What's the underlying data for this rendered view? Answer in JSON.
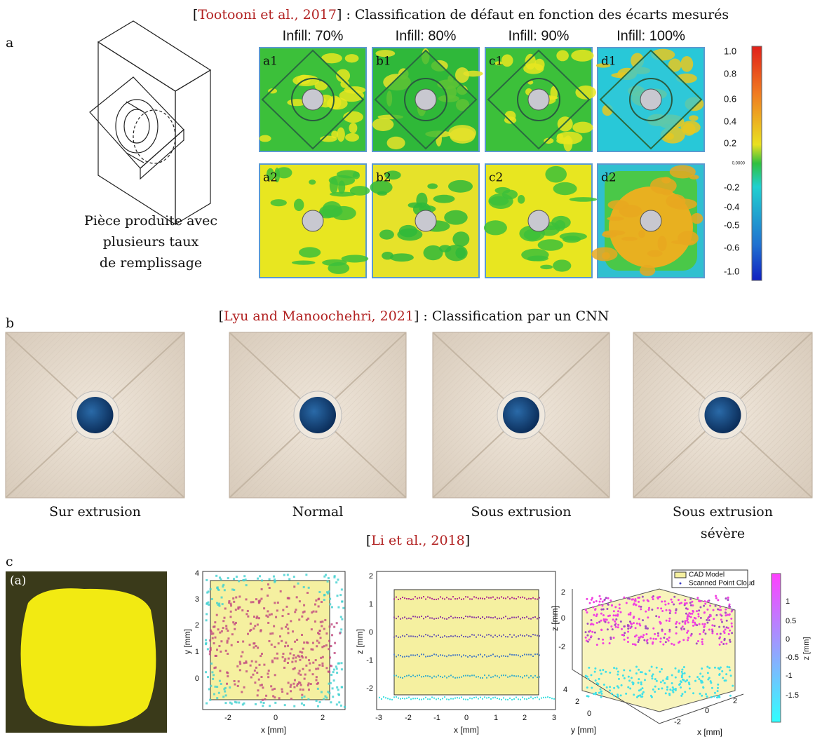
{
  "panel_a": {
    "label": "a",
    "heading": {
      "open": "[",
      "citation": "Tootooni et al., 2017",
      "close": "]",
      "rest": " : Classification de défaut en fonction des écarts mesurés"
    },
    "caption": [
      "Pièce produite avec",
      "plusieurs taux",
      "de remplissage"
    ],
    "columns": [
      "Infill: 70%",
      "Infill: 80%",
      "Infill: 90%",
      "Infill: 100%"
    ],
    "maps": [
      [
        "a1",
        "b1",
        "c1",
        "d1"
      ],
      [
        "a2",
        "b2",
        "c2",
        "d2"
      ]
    ],
    "colorbar": [
      "1.0",
      "0.8",
      "0.6",
      "0.4",
      "0.2",
      "0.0000",
      "-0.2",
      "-0.4",
      "-0.5",
      "-0.6",
      "-1.0"
    ]
  },
  "panel_b": {
    "label": "b",
    "heading": {
      "open": "[",
      "citation": "Lyu and Manoochehri, 2021",
      "close": "]",
      "rest": " : Classification par un CNN"
    },
    "captions": [
      [
        "Sur extrusion"
      ],
      [
        "Normal"
      ],
      [
        "Sous extrusion"
      ],
      [
        "Sous extrusion",
        "sévère"
      ]
    ]
  },
  "panel_c": {
    "label": "c",
    "heading": {
      "open": "[",
      "citation": "Li et al., 2018",
      "close": "]"
    },
    "photo_label": "(a)",
    "plot_xy": {
      "xticks": [
        "-2",
        "0",
        "2"
      ],
      "yticks": [
        "4",
        "3",
        "2",
        "1",
        "0"
      ],
      "xlabel": "x [mm]",
      "ylabel": "y [mm]"
    },
    "plot_xz": {
      "xticks": [
        "-3",
        "-2",
        "-1",
        "0",
        "1",
        "2",
        "3"
      ],
      "zticks": [
        "2",
        "1",
        "0",
        "-1",
        "-2"
      ],
      "xlabel": "x [mm]",
      "zlabel": "z [mm]"
    },
    "plot_3d": {
      "legend": [
        "CAD Model",
        "Scanned Point Cloud"
      ],
      "zticks": [
        "2",
        "0",
        "-2"
      ],
      "yticks": [
        "4",
        "2",
        "0"
      ],
      "xticks": [
        "2",
        "0",
        "-2"
      ],
      "xlabel": "x [mm]",
      "ylabel": "y [mm]",
      "zlabel": "z [mm]"
    },
    "colorbar": {
      "ticks": [
        "1",
        "0.5",
        "0",
        "-0.5",
        "-1",
        "-1.5"
      ],
      "label": "z [mm]"
    }
  }
}
